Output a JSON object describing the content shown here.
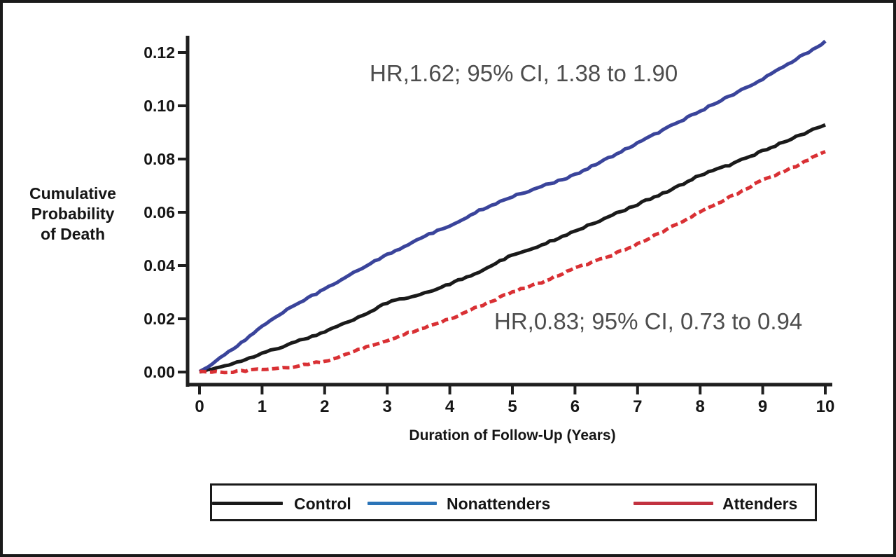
{
  "figure": {
    "annotation_color": "#4d4d4d",
    "axis_color": "#1f1f1f"
  },
  "chart_data": {
    "type": "line",
    "title": "",
    "xlabel": "Duration of Follow-Up (Years)",
    "ylabel_lines": [
      "Cumulative",
      "Probability",
      "of Death"
    ],
    "xlim": [
      0,
      10
    ],
    "ylim": [
      0,
      0.125
    ],
    "x_ticks": [
      "0",
      "1",
      "2",
      "3",
      "4",
      "5",
      "6",
      "7",
      "8",
      "9",
      "10"
    ],
    "x_tick_values": [
      0,
      1,
      2,
      3,
      4,
      5,
      6,
      7,
      8,
      9,
      10
    ],
    "y_ticks": [
      "0.00",
      "0.02",
      "0.04",
      "0.06",
      "0.08",
      "0.10",
      "0.12"
    ],
    "y_tick_values": [
      0.0,
      0.02,
      0.04,
      0.06,
      0.08,
      0.1,
      0.12
    ],
    "grid": false,
    "legend_position": "bottom",
    "x": [
      0,
      0.5,
      1,
      1.5,
      2,
      2.5,
      3,
      3.5,
      4,
      4.5,
      5,
      5.5,
      6,
      6.5,
      7,
      7.5,
      8,
      8.5,
      9,
      9.5,
      10
    ],
    "series": [
      {
        "name": "Control",
        "color": "#1a1a1a",
        "legend_color": "#1a1a1a",
        "style": "solid",
        "values": [
          0,
          0.003,
          0.007,
          0.011,
          0.015,
          0.02,
          0.026,
          0.029,
          0.033,
          0.038,
          0.044,
          0.048,
          0.053,
          0.058,
          0.063,
          0.068,
          0.074,
          0.078,
          0.083,
          0.088,
          0.093
        ]
      },
      {
        "name": "Nonattenders",
        "color": "#3a449b",
        "legend_color": "#2b74b8",
        "style": "solid",
        "values": [
          0,
          0.008,
          0.017,
          0.025,
          0.031,
          0.038,
          0.044,
          0.05,
          0.055,
          0.061,
          0.066,
          0.07,
          0.074,
          0.08,
          0.086,
          0.092,
          0.098,
          0.104,
          0.11,
          0.117,
          0.124
        ]
      },
      {
        "name": "Attenders",
        "color": "#d93034",
        "legend_color": "#c23240",
        "style": "dashed",
        "values": [
          0,
          0.0,
          0.001,
          0.002,
          0.004,
          0.008,
          0.012,
          0.016,
          0.02,
          0.025,
          0.03,
          0.034,
          0.039,
          0.043,
          0.048,
          0.054,
          0.06,
          0.066,
          0.072,
          0.077,
          0.083
        ]
      }
    ],
    "annotations": [
      {
        "text": "HR,1.62; 95% CI, 1.38 to 1.90",
        "series": "Nonattenders"
      },
      {
        "text": "HR,0.83; 95% CI, 0.73 to 0.94",
        "series": "Attenders"
      }
    ]
  }
}
